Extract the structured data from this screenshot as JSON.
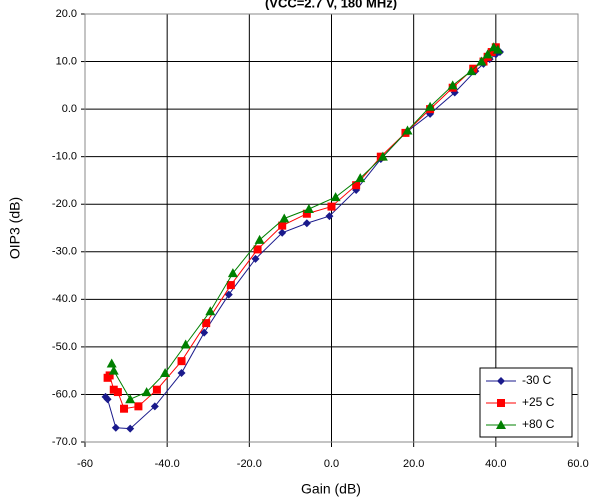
{
  "chart_data": {
    "type": "line",
    "title": "(VCC=2.7 V, 180 MHz)",
    "x_label": "Gain (dB)",
    "y_label": "OIP3 (dB)",
    "xlim": [
      -60,
      60
    ],
    "xticks": [
      -60,
      {
        "value": -40,
        "label": "-40.0"
      },
      {
        "value": -20,
        "label": "-20.0"
      },
      {
        "value": 0,
        "label": "0.0"
      },
      {
        "value": 20,
        "label": "20.0"
      },
      {
        "value": 40,
        "label": "40.0"
      },
      {
        "value": 60,
        "label": "60.0"
      }
    ],
    "ylim": [
      -70,
      20
    ],
    "yticks": [
      {
        "value": -70,
        "label": "-70.0"
      },
      {
        "value": -60,
        "label": "-60.0"
      },
      {
        "value": -50,
        "label": "-50.0"
      },
      {
        "value": -40,
        "label": "-40.0"
      },
      {
        "value": -30,
        "label": "-30.0"
      },
      {
        "value": -20,
        "label": "-20.0"
      },
      {
        "value": -10,
        "label": "-10.0"
      },
      {
        "value": 0,
        "label": "0.0"
      },
      {
        "value": 10,
        "label": "10.0"
      },
      {
        "value": 20,
        "label": "20.0"
      }
    ],
    "grid": true,
    "legend": "lower right",
    "series": [
      {
        "name": "-30 C",
        "color": "#1a1a8c",
        "marker": "diamond",
        "x": [
          -55,
          -54.5,
          -52.5,
          -49,
          -43,
          -36.5,
          -31,
          -25,
          -18.5,
          -12,
          -6,
          -0.5,
          6,
          12,
          18,
          24,
          30,
          35,
          37,
          38.5,
          40,
          41
        ],
        "values": [
          -60.5,
          -61,
          -67,
          -67.2,
          -62.5,
          -55.5,
          -47,
          -39,
          -31.5,
          -26,
          -24,
          -22.5,
          -17,
          -10.5,
          -5,
          -1,
          3.5,
          8,
          9.5,
          10.5,
          11.5,
          12
        ]
      },
      {
        "name": "+25 C",
        "color": "#ff0000",
        "marker": "square",
        "x": [
          -54.5,
          -54,
          -53,
          -52,
          -50.5,
          -47,
          -42.5,
          -36.5,
          -30.5,
          -24.5,
          -18,
          -12,
          -6,
          0,
          6,
          12,
          18,
          24,
          29.5,
          34.5,
          37,
          38,
          39,
          40
        ],
        "values": [
          -56.5,
          -56,
          -59,
          -59.5,
          -63,
          -62.5,
          -59,
          -53,
          -45,
          -37,
          -29.5,
          -24.5,
          -22,
          -20.5,
          -16,
          -10,
          -5,
          0,
          4.5,
          8.5,
          10,
          11,
          12,
          13
        ]
      },
      {
        "name": "+80 C",
        "color": "#008000",
        "marker": "triangle",
        "x": [
          -53.5,
          -53,
          -49,
          -45,
          -40.5,
          -35.5,
          -29.5,
          -24,
          -17.5,
          -11.5,
          -5.5,
          1,
          7,
          12.5,
          18.5,
          24,
          29.5,
          34,
          36.5,
          38,
          39.5,
          40.5
        ],
        "values": [
          -53.5,
          -55,
          -61,
          -59.5,
          -55.5,
          -49.5,
          -42.5,
          -34.5,
          -27.5,
          -23,
          -21,
          -18.5,
          -14.5,
          -10,
          -4.5,
          0.5,
          5,
          8,
          10,
          11.5,
          13,
          12.5
        ]
      }
    ]
  }
}
